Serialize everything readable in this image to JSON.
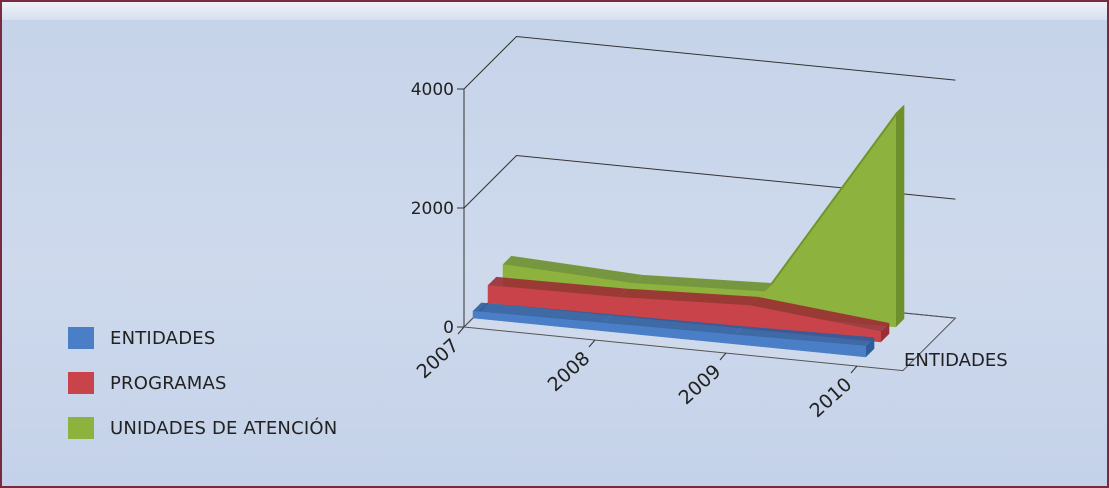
{
  "chart_data": {
    "type": "area",
    "categories": [
      "2007",
      "2008",
      "2009",
      "2010"
    ],
    "series": [
      {
        "name": "ENTIDADES",
        "values": [
          120,
          140,
          160,
          190
        ],
        "color": "#4a7ec6",
        "side": "#2e5d9e"
      },
      {
        "name": "PROGRAMAS",
        "values": [
          300,
          320,
          400,
          180
        ],
        "color": "#c9444a",
        "side": "#9a2e33"
      },
      {
        "name": "UNIDADES DE ATENCIÓN",
        "values": [
          400,
          300,
          380,
          3600
        ],
        "color": "#8db33e",
        "side": "#6d8f2c"
      }
    ],
    "y_ticks": [
      "0",
      "2000",
      "4000"
    ],
    "ylim": [
      0,
      4000
    ],
    "depth_axis_label": "ENTIDADES",
    "legend_position": "bottom-left",
    "grid": true
  }
}
